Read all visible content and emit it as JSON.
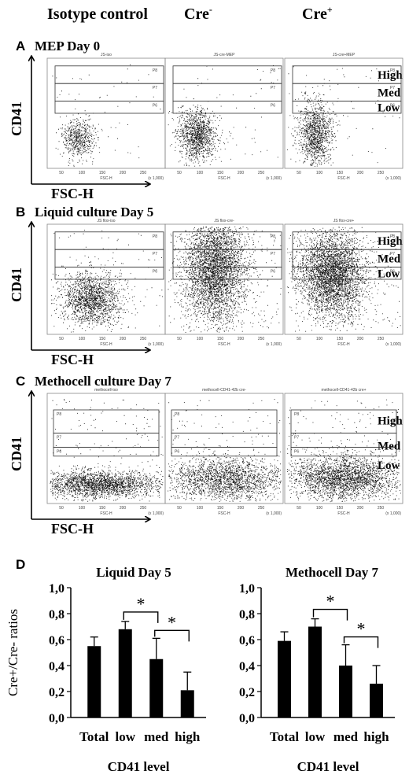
{
  "column_headers": [
    "Isotype control",
    "Cre",
    "Cre"
  ],
  "column_header_superscripts": [
    "",
    "-",
    "+"
  ],
  "gate_level_labels": [
    "High",
    "Med",
    "Low"
  ],
  "axis_labels": {
    "flow_y": "CD41",
    "flow_x": "FSC-H"
  },
  "flow_panels": [
    {
      "letter": "A",
      "title": "MEP Day 0",
      "plot_titles": [
        "JS-iso",
        "JS-cre-MEP",
        "JS-cre+MEP"
      ],
      "gate_names": [
        "P8",
        "P7",
        "P6"
      ]
    },
    {
      "letter": "B",
      "title": "Liquid culture Day 5",
      "plot_titles": [
        "JS flox-iso",
        "JS flox-cre-",
        "JS flox-cre+"
      ],
      "gate_names": [
        "P8",
        "P7",
        "P6"
      ]
    },
    {
      "letter": "C",
      "title": "Methocell culture Day 7",
      "plot_titles": [
        "methocell-iso",
        "methocell-CD41-42b cre-",
        "methocell-CD41-42b cre+"
      ],
      "gate_names": [
        "P8",
        "P7",
        "P6"
      ]
    }
  ],
  "flow_tick_labels": {
    "x": [
      "50",
      "100",
      "150",
      "200",
      "250"
    ],
    "xmax": "(x 1,000)",
    "x_axis_name": "FSC-H"
  },
  "bar_panel_letter": "D",
  "chart_data": [
    {
      "type": "bar",
      "title": "Liquid Day 5",
      "categories": [
        "Total",
        "low",
        "med",
        "high"
      ],
      "values": [
        0.55,
        0.68,
        0.45,
        0.21
      ],
      "errors": [
        0.07,
        0.06,
        0.16,
        0.14
      ],
      "ylabel": "Cre+/Cre- ratios",
      "xlabel": "CD41 level",
      "ylim": [
        0.0,
        1.0
      ],
      "yticks": [
        "0,0",
        "0,2",
        "0,4",
        "0,6",
        "0,8",
        "1,0"
      ],
      "significance": [
        {
          "from": "low",
          "to": "med",
          "label": "*"
        },
        {
          "from": "med",
          "to": "high",
          "label": "*"
        }
      ]
    },
    {
      "type": "bar",
      "title": "Methocell Day 7",
      "categories": [
        "Total",
        "low",
        "med",
        "high"
      ],
      "values": [
        0.59,
        0.7,
        0.4,
        0.26
      ],
      "errors": [
        0.07,
        0.06,
        0.16,
        0.14
      ],
      "ylabel": "",
      "xlabel": "CD41 level",
      "ylim": [
        0.0,
        1.0
      ],
      "yticks": [
        "0,0",
        "0,2",
        "0,4",
        "0,6",
        "0,8",
        "1,0"
      ],
      "significance": [
        {
          "from": "low",
          "to": "med",
          "label": "*"
        },
        {
          "from": "med",
          "to": "high",
          "label": "*"
        }
      ]
    }
  ]
}
